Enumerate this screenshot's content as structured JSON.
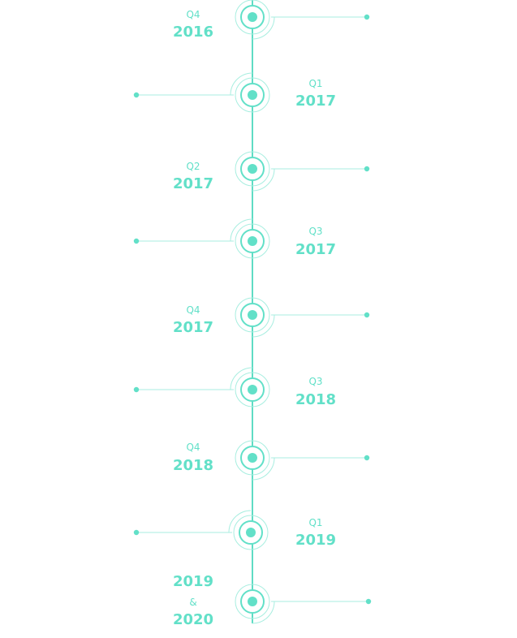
{
  "colors": {
    "accent": "#62e0c8",
    "spine": "#5fdcc4",
    "thin_ring": "#a8eee0",
    "background": "#ffffff"
  },
  "milestones": [
    {
      "quarter": "Q4",
      "year": "2016"
    },
    {
      "quarter": "Q1",
      "year": "2017"
    },
    {
      "quarter": "Q2",
      "year": "2017"
    },
    {
      "quarter": "Q3",
      "year": "2017"
    },
    {
      "quarter": "Q4",
      "year": "2017"
    },
    {
      "quarter": "Q3",
      "year": "2018"
    },
    {
      "quarter": "Q4",
      "year": "2018"
    },
    {
      "quarter": "Q1",
      "year": "2019"
    },
    {
      "year": "2019",
      "connector": "&",
      "year2": "2020"
    }
  ]
}
